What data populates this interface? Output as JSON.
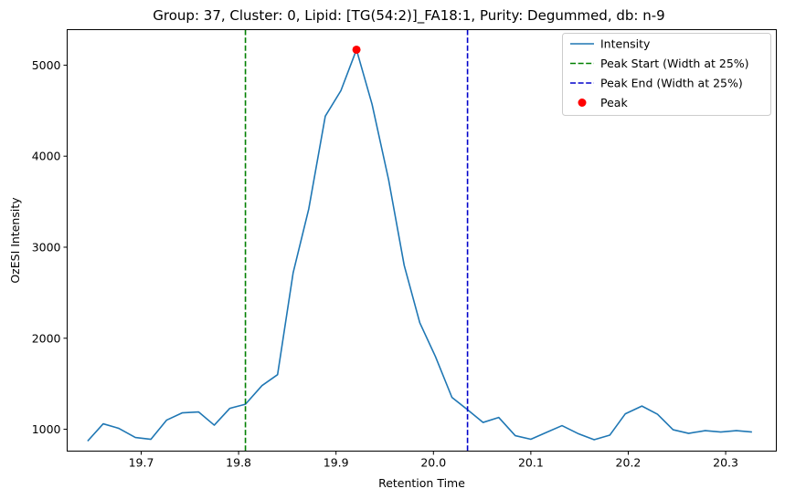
{
  "chart_data": {
    "type": "line",
    "title": "Group: 37, Cluster: 0, Lipid: [TG(54:2)]_FA18:1, Purity: Degummed, db: n-9",
    "xlabel": "Retention Time",
    "ylabel": "OzESI Intensity",
    "xlim": [
      19.624,
      20.352
    ],
    "ylim": [
      760,
      5390
    ],
    "xticks": [
      19.7,
      19.8,
      19.9,
      20.0,
      20.1,
      20.2,
      20.3
    ],
    "xtick_labels": [
      "19.7",
      "19.8",
      "19.9",
      "20.0",
      "20.1",
      "20.2",
      "20.3"
    ],
    "yticks": [
      1000,
      2000,
      3000,
      4000,
      5000
    ],
    "ytick_labels": [
      "1000",
      "2000",
      "3000",
      "4000",
      "5000"
    ],
    "grid": false,
    "legend_position": "top-right",
    "series": [
      {
        "name": "Intensity",
        "kind": "line",
        "color": "#1f77b4",
        "x": [
          19.645,
          19.661,
          19.677,
          19.694,
          19.71,
          19.726,
          19.742,
          19.759,
          19.775,
          19.791,
          19.807,
          19.824,
          19.84,
          19.856,
          19.872,
          19.889,
          19.905,
          19.921,
          19.937,
          19.954,
          19.97,
          19.986,
          20.002,
          20.019,
          20.035,
          20.051,
          20.067,
          20.084,
          20.1,
          20.116,
          20.132,
          20.149,
          20.165,
          20.181,
          20.197,
          20.214,
          20.23,
          20.246,
          20.262,
          20.279,
          20.295,
          20.311,
          20.327
        ],
        "y": [
          870,
          1060,
          1010,
          910,
          890,
          1100,
          1180,
          1190,
          1045,
          1230,
          1275,
          1480,
          1600,
          2720,
          3420,
          4440,
          4720,
          5170,
          4570,
          3740,
          2800,
          2170,
          1800,
          1350,
          1215,
          1075,
          1130,
          930,
          890,
          965,
          1040,
          950,
          885,
          935,
          1170,
          1255,
          1165,
          995,
          955,
          985,
          970,
          985,
          970
        ]
      },
      {
        "name": "Peak Start (Width at 25%)",
        "kind": "vline",
        "color": "#008000",
        "x": 19.807
      },
      {
        "name": "Peak End (Width at 25%)",
        "kind": "vline",
        "color": "#0000cc",
        "x": 20.035
      },
      {
        "name": "Peak",
        "kind": "point",
        "color": "#ff0000",
        "x": 19.921,
        "y": 5170
      }
    ]
  }
}
